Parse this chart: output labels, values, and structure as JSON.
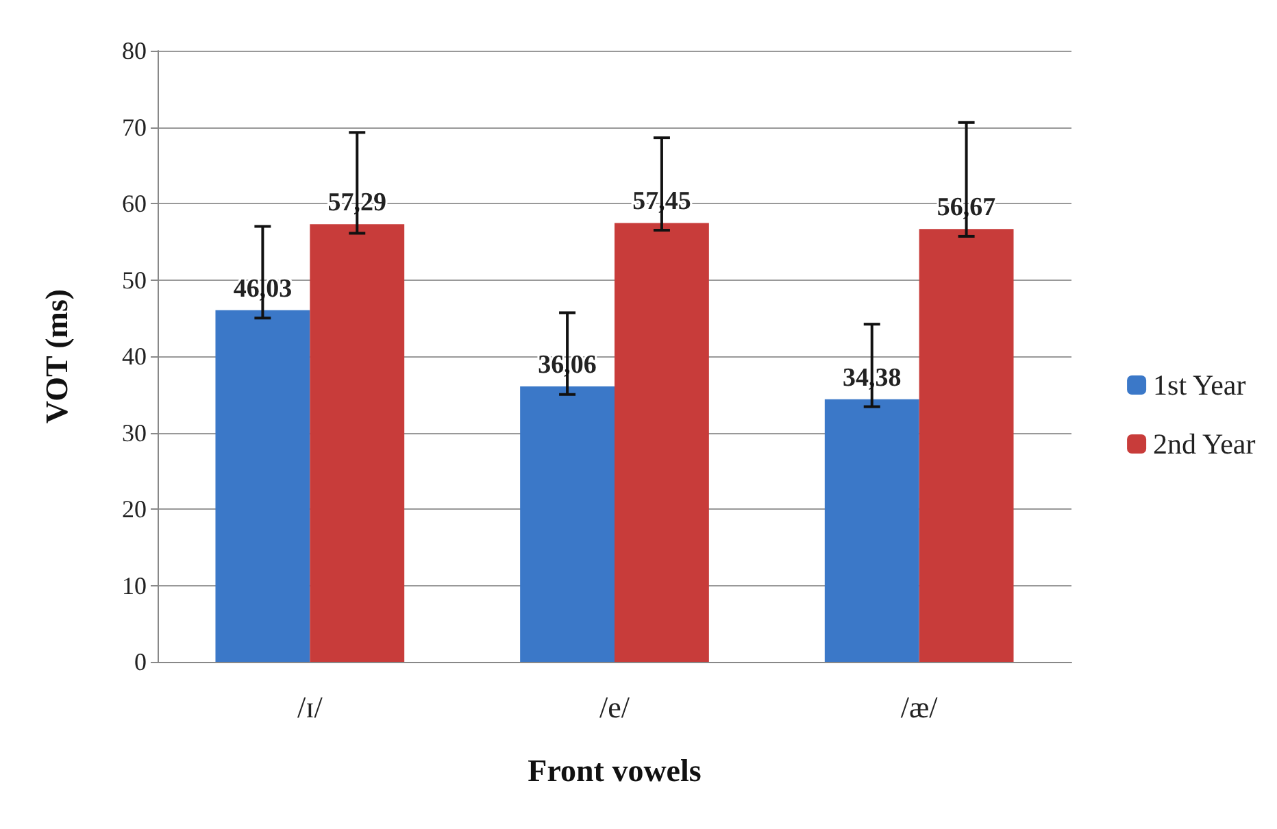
{
  "chart_data": {
    "type": "bar",
    "xlabel": "Front vowels",
    "ylabel": "VOT (ms)",
    "categories": [
      "/ɪ/",
      "/e/",
      "/æ/"
    ],
    "series": [
      {
        "name": "1st Year",
        "color": "#3b78c8",
        "values": [
          46.03,
          36.06,
          34.38
        ],
        "value_labels": [
          "46,03",
          "36,06",
          "34,38"
        ],
        "errors": [
          [
            45.0,
            57.0
          ],
          [
            35.0,
            45.7
          ],
          [
            33.4,
            44.2
          ]
        ]
      },
      {
        "name": "2nd Year",
        "color": "#c83c3a",
        "values": [
          57.29,
          57.45,
          56.67
        ],
        "value_labels": [
          "57,29",
          "57,45",
          "56,67"
        ],
        "errors": [
          [
            56.1,
            69.3
          ],
          [
            56.5,
            68.6
          ],
          [
            55.7,
            70.6
          ]
        ]
      }
    ],
    "ylim": [
      0,
      80
    ],
    "yticks": [
      0,
      10,
      20,
      30,
      40,
      50,
      60,
      70,
      80
    ],
    "grid": "y",
    "legend": "right"
  }
}
